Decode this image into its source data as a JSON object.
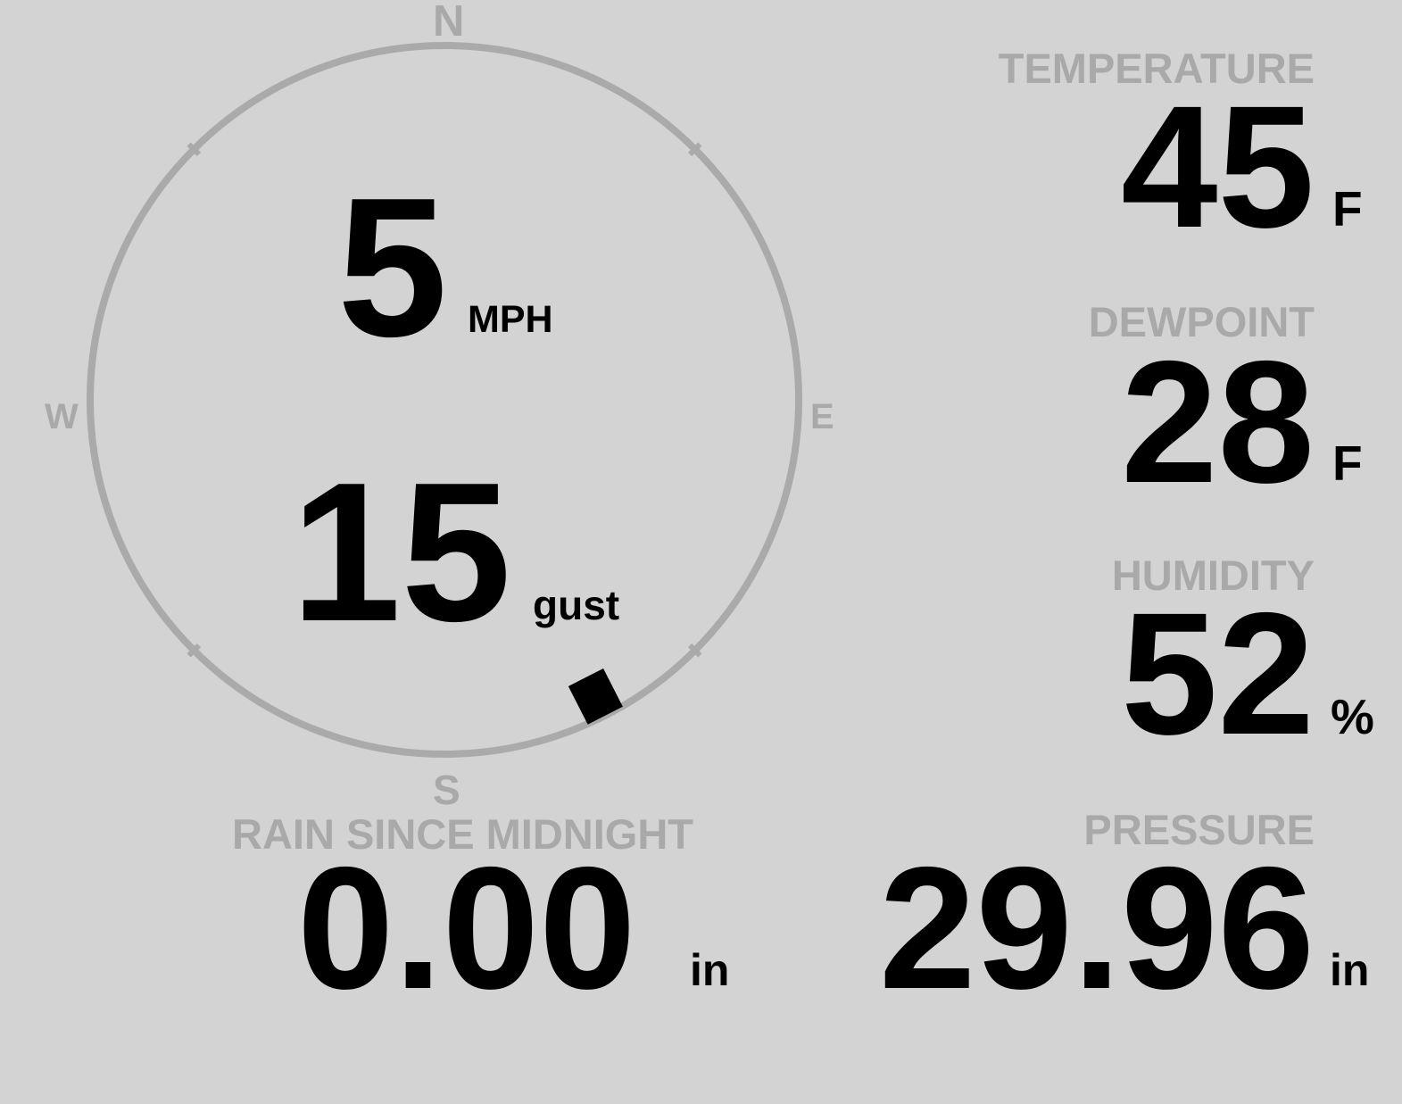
{
  "colors": {
    "background": "#d3d3d3",
    "label": "#a9a9a9",
    "value": "#000000",
    "ring": "#aaaaaa",
    "marker": "#000000"
  },
  "compass": {
    "north": "N",
    "east": "E",
    "south": "S",
    "west": "W",
    "wind_direction_deg": 153,
    "wind_speed": "5",
    "wind_speed_unit": "MPH",
    "gust_speed": "15",
    "gust_unit": "gust"
  },
  "temperature": {
    "label": "TEMPERATURE",
    "value": "45",
    "unit": "F"
  },
  "dewpoint": {
    "label": "DEWPOINT",
    "value": "28",
    "unit": "F"
  },
  "humidity": {
    "label": "HUMIDITY",
    "value": "52",
    "unit": "%"
  },
  "rain": {
    "label": "RAIN SINCE MIDNIGHT",
    "value": "0.00",
    "unit": "in"
  },
  "pressure": {
    "label": "PRESSURE",
    "value": "29.96",
    "unit": "in"
  }
}
